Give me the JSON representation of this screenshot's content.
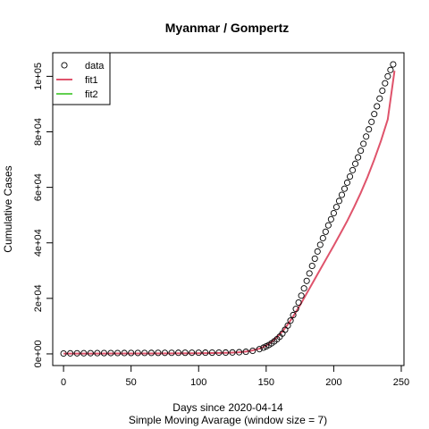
{
  "chart_data": {
    "type": "scatter",
    "title": "Myanmar / Gompertz",
    "xlabel": "Days since 2020-04-14",
    "subtitle": "Simple Moving Avarage (window size = 7)",
    "ylabel": "Cumulative Cases",
    "xlim": [
      -8,
      252
    ],
    "ylim": [
      -4200,
      108500
    ],
    "x_ticks": [
      0,
      50,
      100,
      150,
      200,
      250
    ],
    "y_ticks": [
      0,
      20000,
      40000,
      60000,
      80000,
      100000
    ],
    "y_tick_labels": [
      "0e+00",
      "2e+04",
      "4e+04",
      "6e+04",
      "8e+04",
      "1e+05"
    ],
    "legend": {
      "placement": "top-left",
      "entries": [
        {
          "label": "data",
          "symbol": "circle",
          "color": "#000000"
        },
        {
          "label": "fit1",
          "symbol": "line",
          "color": "#DF536B"
        },
        {
          "label": "fit2",
          "symbol": "line",
          "color": "#61D04F"
        }
      ]
    },
    "series": [
      {
        "name": "data",
        "kind": "points",
        "color": "#000000",
        "x": [
          0,
          5,
          10,
          15,
          20,
          25,
          30,
          35,
          40,
          45,
          50,
          55,
          60,
          65,
          70,
          75,
          80,
          85,
          90,
          95,
          100,
          105,
          110,
          115,
          120,
          125,
          130,
          135,
          140,
          145,
          148,
          150,
          152,
          154,
          156,
          158,
          160,
          162,
          164,
          166,
          168,
          170,
          172,
          174,
          176,
          178,
          180,
          182,
          184,
          186,
          188,
          190,
          192,
          194,
          196,
          198,
          200,
          202,
          204,
          206,
          208,
          210,
          212,
          214,
          216,
          218,
          220,
          222,
          224,
          226,
          228,
          230,
          232,
          234,
          236,
          238,
          240,
          242,
          244
        ],
        "y": [
          150,
          200,
          220,
          240,
          260,
          280,
          290,
          300,
          310,
          320,
          330,
          340,
          350,
          360,
          370,
          380,
          390,
          400,
          410,
          420,
          430,
          440,
          450,
          460,
          480,
          520,
          600,
          760,
          1100,
          1700,
          2250,
          2700,
          3200,
          3800,
          4500,
          5300,
          6200,
          7300,
          8700,
          10200,
          12000,
          14000,
          16200,
          18500,
          21000,
          23600,
          26300,
          29000,
          31700,
          34300,
          36900,
          39300,
          41700,
          44000,
          46300,
          48500,
          50700,
          52900,
          55100,
          57300,
          59500,
          61700,
          63900,
          66200,
          68500,
          70800,
          73200,
          75700,
          78300,
          80900,
          83600,
          86400,
          89200,
          92000,
          94800,
          97500,
          100000,
          102300,
          104300
        ]
      },
      {
        "name": "fit1",
        "kind": "line",
        "color": "#DF536B",
        "x": [
          0,
          20,
          40,
          60,
          80,
          100,
          110,
          120,
          125,
          130,
          135,
          140,
          145,
          148,
          150,
          152,
          154,
          156,
          158,
          160,
          163,
          166,
          170,
          175,
          180,
          185,
          190,
          195,
          200,
          205,
          210,
          215,
          220,
          225,
          230,
          235,
          240,
          245
        ],
        "y": [
          100,
          120,
          140,
          160,
          190,
          240,
          290,
          370,
          450,
          580,
          820,
          1250,
          1900,
          2500,
          3000,
          3600,
          4300,
          5100,
          6000,
          7000,
          8700,
          10600,
          13500,
          17500,
          21800,
          26100,
          30400,
          34700,
          39000,
          43400,
          47900,
          52800,
          58000,
          63700,
          70000,
          76800,
          84500,
          102000
        ]
      },
      {
        "name": "fit2",
        "kind": "line",
        "color": "#61D04F",
        "x": [],
        "y": []
      }
    ]
  }
}
